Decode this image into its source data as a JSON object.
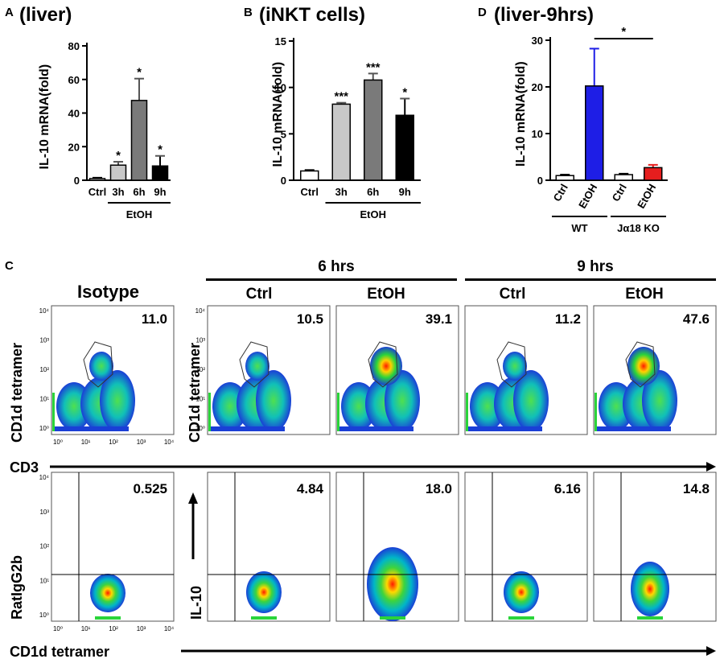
{
  "panel_c": {
    "letter": "C",
    "isotope_header": "Isotype",
    "time_groups": [
      {
        "label": "6 hrs",
        "sub": [
          "Ctrl",
          "EtOH"
        ]
      },
      {
        "label": "9 hrs",
        "sub": [
          "Ctrl",
          "EtOH"
        ]
      }
    ],
    "top_row": {
      "ylabel": "CD1d tetramer",
      "xlabel": "CD3",
      "percentages": [
        "11.0",
        "10.5",
        "39.1",
        "11.2",
        "47.6"
      ],
      "ticks": [
        "10⁰",
        "10¹",
        "10²",
        "10³",
        "10⁴"
      ]
    },
    "bottom_row": {
      "ylabel_isotype": "RatIgG2b",
      "ylabel": "IL-10",
      "xlabel": "CD1d tetramer",
      "percentages": [
        "0.525",
        "4.84",
        "18.0",
        "6.16",
        "14.8"
      ],
      "ticks": [
        "10⁰",
        "10¹",
        "10²",
        "10³",
        "10⁴"
      ]
    }
  },
  "chart_data": [
    {
      "panel": "A",
      "type": "bar",
      "title": "(liver)",
      "ylabel": "IL-10 mRNA(fold)",
      "xlabel": "",
      "ylim": [
        0,
        80
      ],
      "yticks": [
        0,
        20,
        40,
        60,
        80
      ],
      "categories": [
        "Ctrl",
        "3h",
        "6h",
        "9h"
      ],
      "values": [
        1,
        9,
        47.5,
        8.5
      ],
      "errors": [
        0.5,
        2,
        13,
        6
      ],
      "colors": [
        "#ffffff",
        "#c8c8c8",
        "#7a7a7a",
        "#000000"
      ],
      "significance": [
        "",
        "*",
        "*",
        "*"
      ],
      "group_label": "EtOH",
      "group_span": [
        1,
        3
      ]
    },
    {
      "panel": "B",
      "type": "bar",
      "title": "(iNKT cells)",
      "ylabel": "IL-10 mRNA(fold)",
      "xlabel": "",
      "ylim": [
        0,
        15
      ],
      "yticks": [
        0,
        5,
        10,
        15
      ],
      "categories": [
        "Ctrl",
        "3h",
        "6h",
        "9h"
      ],
      "values": [
        1.0,
        8.2,
        10.8,
        7.0
      ],
      "errors": [
        0.1,
        0.15,
        0.7,
        1.8
      ],
      "colors": [
        "#ffffff",
        "#c8c8c8",
        "#7a7a7a",
        "#000000"
      ],
      "significance": [
        "",
        "***",
        "***",
        "*"
      ],
      "group_label": "EtOH",
      "group_span": [
        1,
        3
      ]
    },
    {
      "panel": "D",
      "type": "bar",
      "title": "(liver-9hrs)",
      "ylabel": "IL-10 mRNA(fold)",
      "xlabel": "",
      "ylim": [
        0,
        30
      ],
      "yticks": [
        0,
        10,
        20,
        30
      ],
      "categories": [
        "Ctrl",
        "EtOH",
        "Ctrl",
        "EtOH"
      ],
      "values": [
        1.0,
        20.2,
        1.2,
        2.7
      ],
      "errors": [
        0.2,
        8.0,
        0.2,
        0.6
      ],
      "colors": [
        "#ffffff",
        "#1e1ee6",
        "#ffffff",
        "#e61e1e"
      ],
      "groups": [
        {
          "label": "WT",
          "span": [
            0,
            1
          ]
        },
        {
          "label": "Jα18 KO",
          "span": [
            2,
            3
          ]
        }
      ],
      "comparison": {
        "label": "*",
        "from": 1,
        "to": 3
      }
    }
  ]
}
